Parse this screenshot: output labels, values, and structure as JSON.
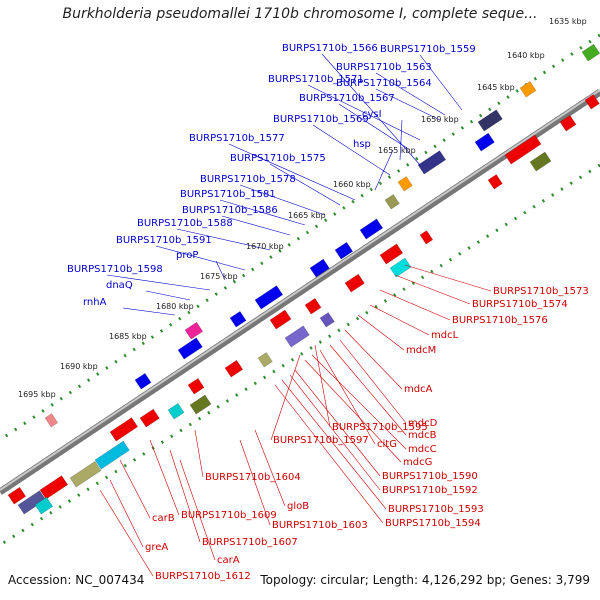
{
  "title": "Burkholderia pseudomallei 1710b chromosome I, complete seque...",
  "footer": {
    "accession": "Accession: NC_007434",
    "stats": "Topology: circular; Length: 4,126,292 bp; Genes: 3,799"
  },
  "ticks": [
    "1635 kbp",
    "1640 kbp",
    "1645 kbp",
    "1650 kbp",
    "1655 kbp",
    "1660 kbp",
    "1665 kbp",
    "1670 kbp",
    "1675 kbp",
    "1680 kbp",
    "1685 kbp",
    "1690 kbp",
    "1695 kbp"
  ],
  "forward_labels": [
    "BURPS1710b_1566",
    "BURPS1710b_1559",
    "BURPS1710b_1563",
    "BURPS1710b_1564",
    "BURPS1710b_1571",
    "BURPS1710b_1567",
    "cysI",
    "BURPS1710b_1569",
    "hsp",
    "BURPS1710b_1577",
    "BURPS1710b_1575",
    "BURPS1710b_1578",
    "BURPS1710b_1581",
    "BURPS1710b_1586",
    "BURPS1710b_1588",
    "BURPS1710b_1591",
    "proP",
    "BURPS1710b_1598",
    "dnaQ",
    "rnhA"
  ],
  "reverse_labels": [
    "BURPS1710b_1573",
    "BURPS1710b_1574",
    "BURPS1710b_1576",
    "mdcL",
    "mdcM",
    "mdcA",
    "BURPS1710b_1595",
    "BURPS1710b_1597",
    "mdcD",
    "mdcB",
    "citG",
    "mdcC",
    "mdcG",
    "BURPS1710b_1590",
    "BURPS1710b_1592",
    "BURPS1710b_1593",
    "BURPS1710b_1594",
    "BURPS1710b_1604",
    "gloB",
    "BURPS1710b_1609",
    "BURPS1710b_1603",
    "carB",
    "BURPS1710b_1607",
    "carA",
    "greA",
    "BURPS1710b_1612"
  ],
  "colors": {
    "forward_gene": "#0000ee",
    "reverse_gene": "#ee0000",
    "backbone": "#888888",
    "tick_dots": "#2e8b2e"
  }
}
